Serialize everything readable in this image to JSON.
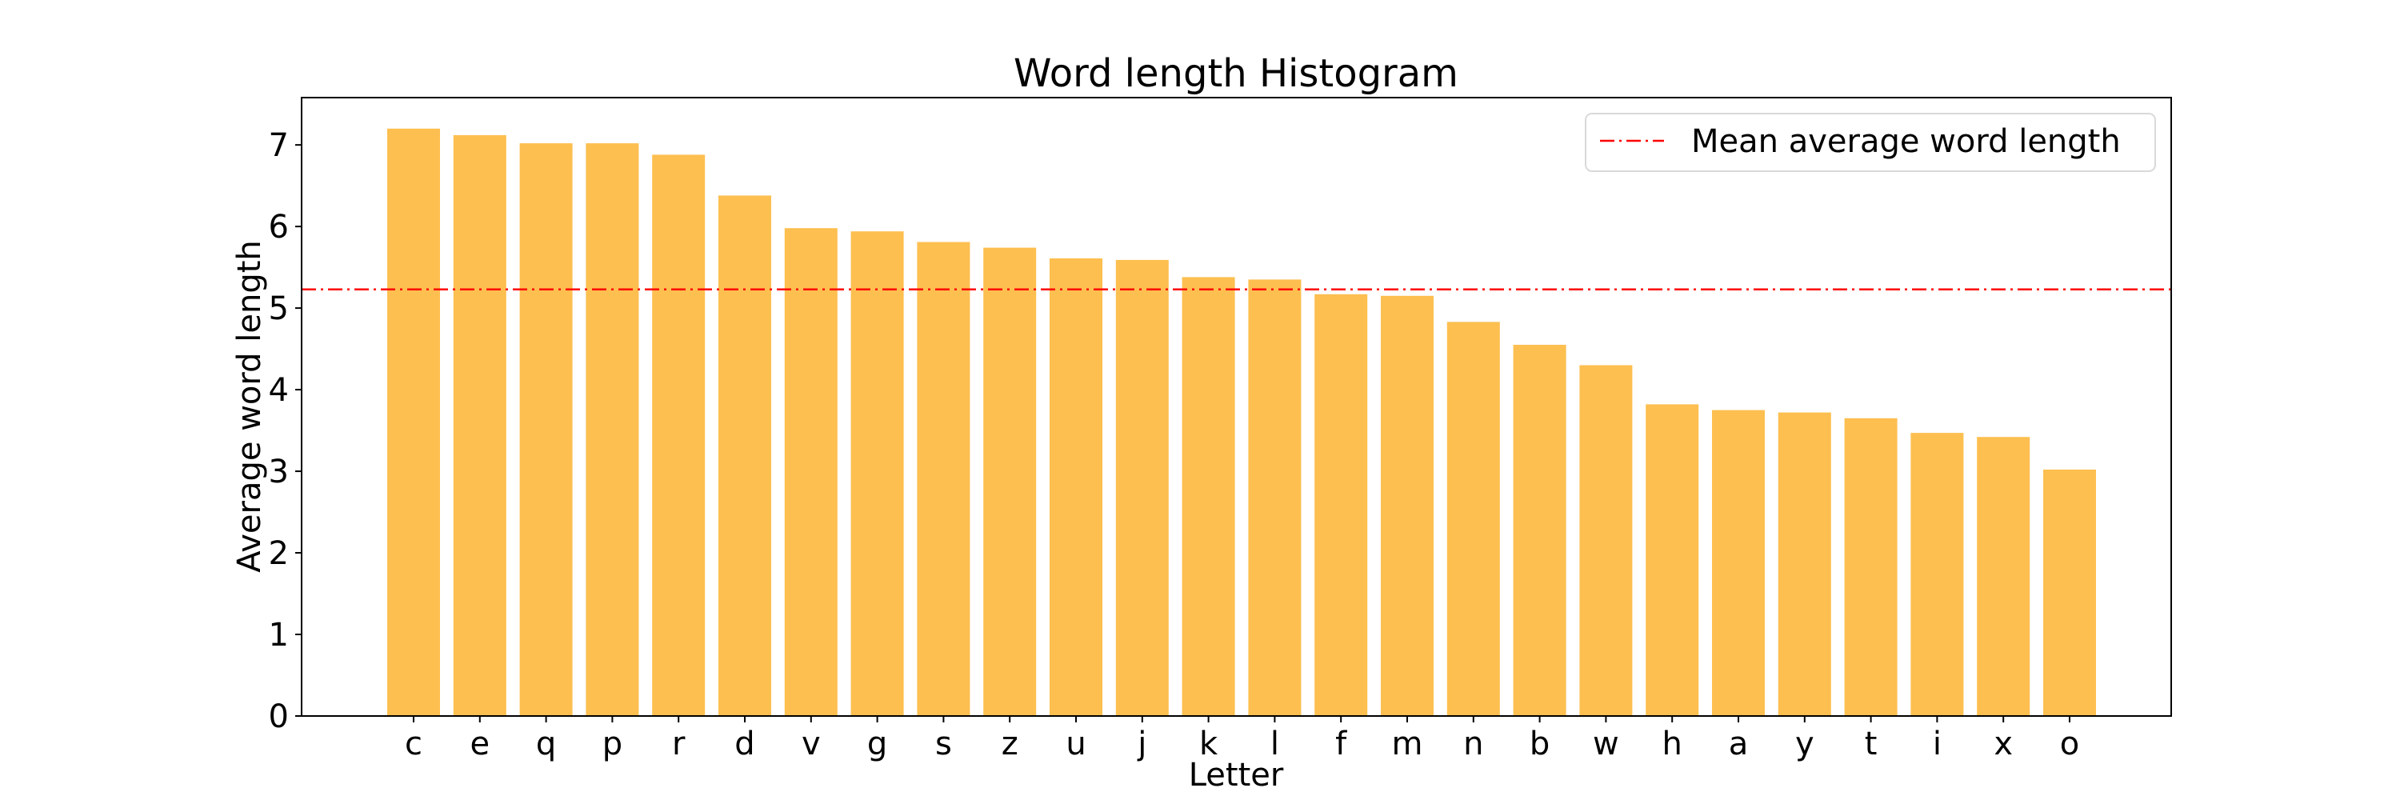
{
  "chart_data": {
    "type": "bar",
    "title": "Word length Histogram",
    "xlabel": "Letter",
    "ylabel": "Average word length",
    "categories": [
      "c",
      "e",
      "q",
      "p",
      "r",
      "d",
      "v",
      "g",
      "s",
      "z",
      "u",
      "j",
      "k",
      "l",
      "f",
      "m",
      "n",
      "b",
      "w",
      "h",
      "a",
      "y",
      "t",
      "i",
      "x",
      "o"
    ],
    "values": [
      7.2,
      7.12,
      7.02,
      7.02,
      6.88,
      6.38,
      5.98,
      5.94,
      5.81,
      5.74,
      5.61,
      5.59,
      5.38,
      5.35,
      5.17,
      5.15,
      4.83,
      4.55,
      4.3,
      3.82,
      3.75,
      3.72,
      3.65,
      3.47,
      3.42,
      3.02
    ],
    "yticks": [
      0,
      1,
      2,
      3,
      4,
      5,
      6,
      7
    ],
    "ylim": [
      0,
      7.58
    ],
    "bar_color": "#fdbf50",
    "grid": false,
    "mean_line": {
      "value": 5.23,
      "label": "Mean average word length",
      "color": "#ff0000",
      "style": "dash-dot"
    },
    "legend": {
      "position": "top-right"
    }
  }
}
